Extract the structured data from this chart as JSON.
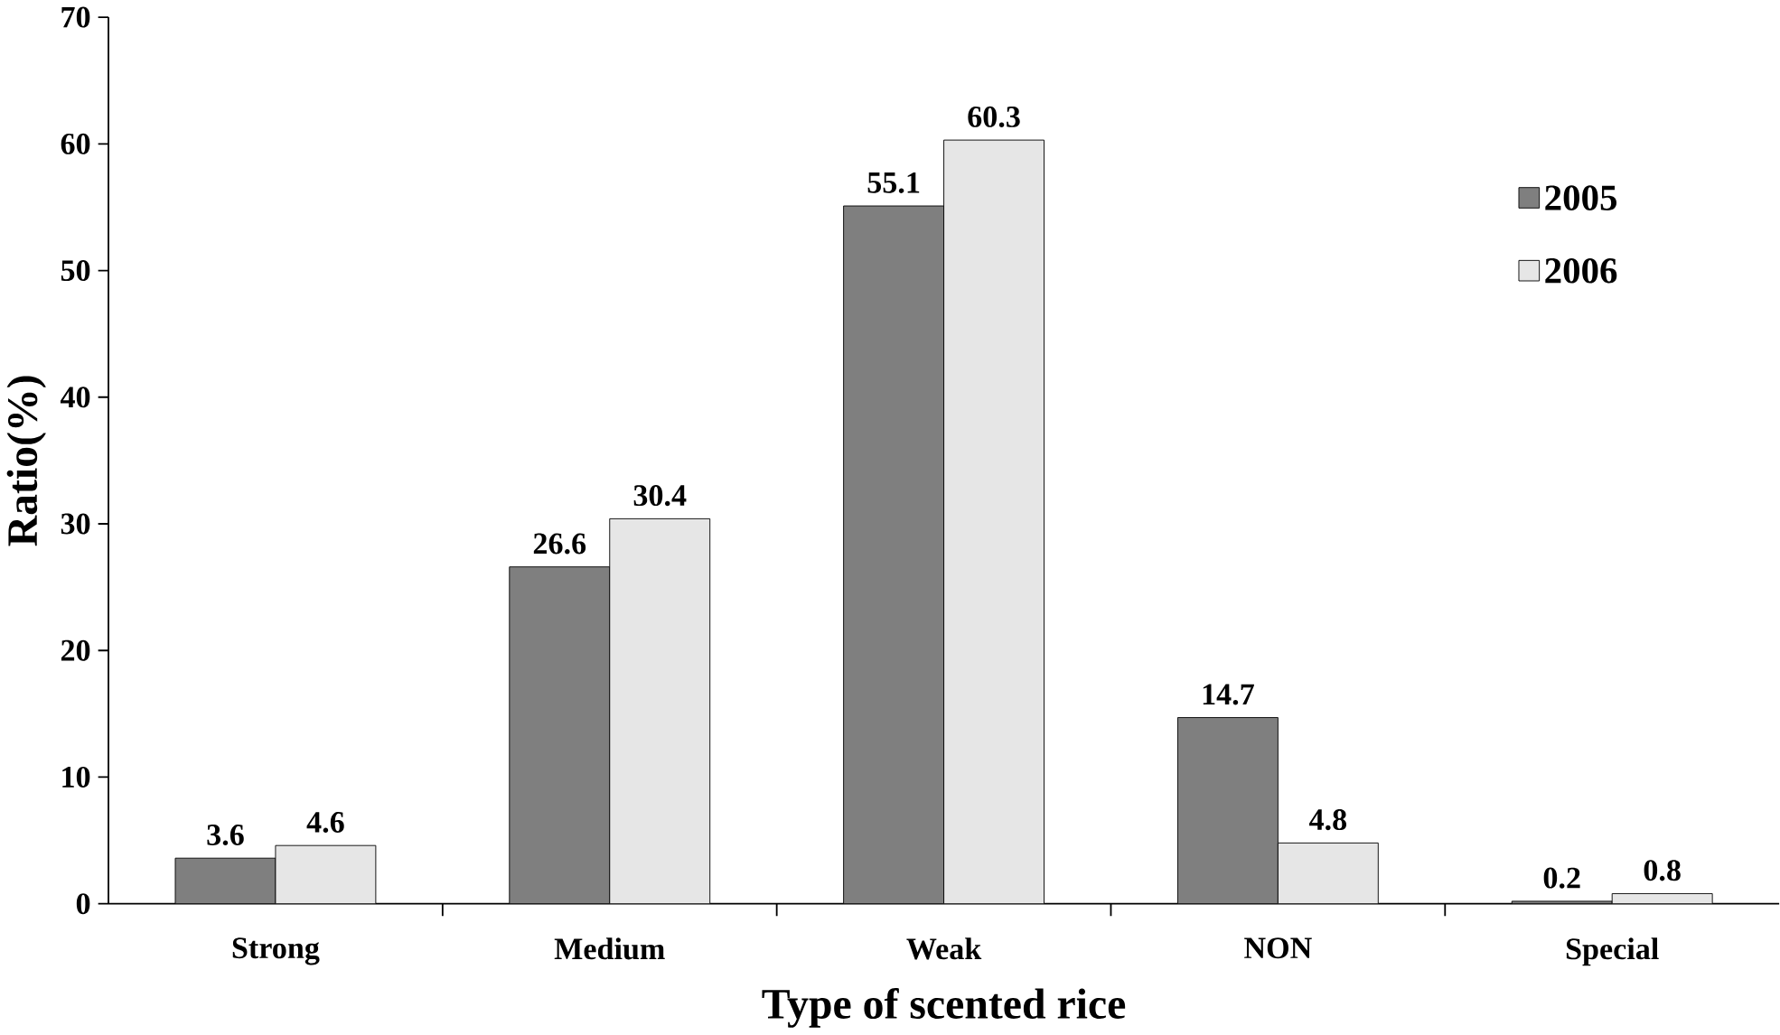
{
  "chart_data": {
    "type": "bar",
    "xlabel": "Type of scented rice",
    "ylabel": "Ratio(%)",
    "categories": [
      "Strong",
      "Medium",
      "Weak",
      "NON",
      "Special"
    ],
    "series": [
      {
        "name": "2005",
        "color": "#7f7f7f",
        "values": [
          3.6,
          26.6,
          55.1,
          14.7,
          0.2
        ]
      },
      {
        "name": "2006",
        "color": "#e6e6e6",
        "values": [
          4.6,
          30.4,
          60.3,
          4.8,
          0.8
        ]
      }
    ],
    "ylim": [
      0,
      70
    ],
    "yticks": [
      0,
      10,
      20,
      30,
      40,
      50,
      60,
      70
    ],
    "data_labels": true,
    "legend": "top right",
    "grid": false
  }
}
